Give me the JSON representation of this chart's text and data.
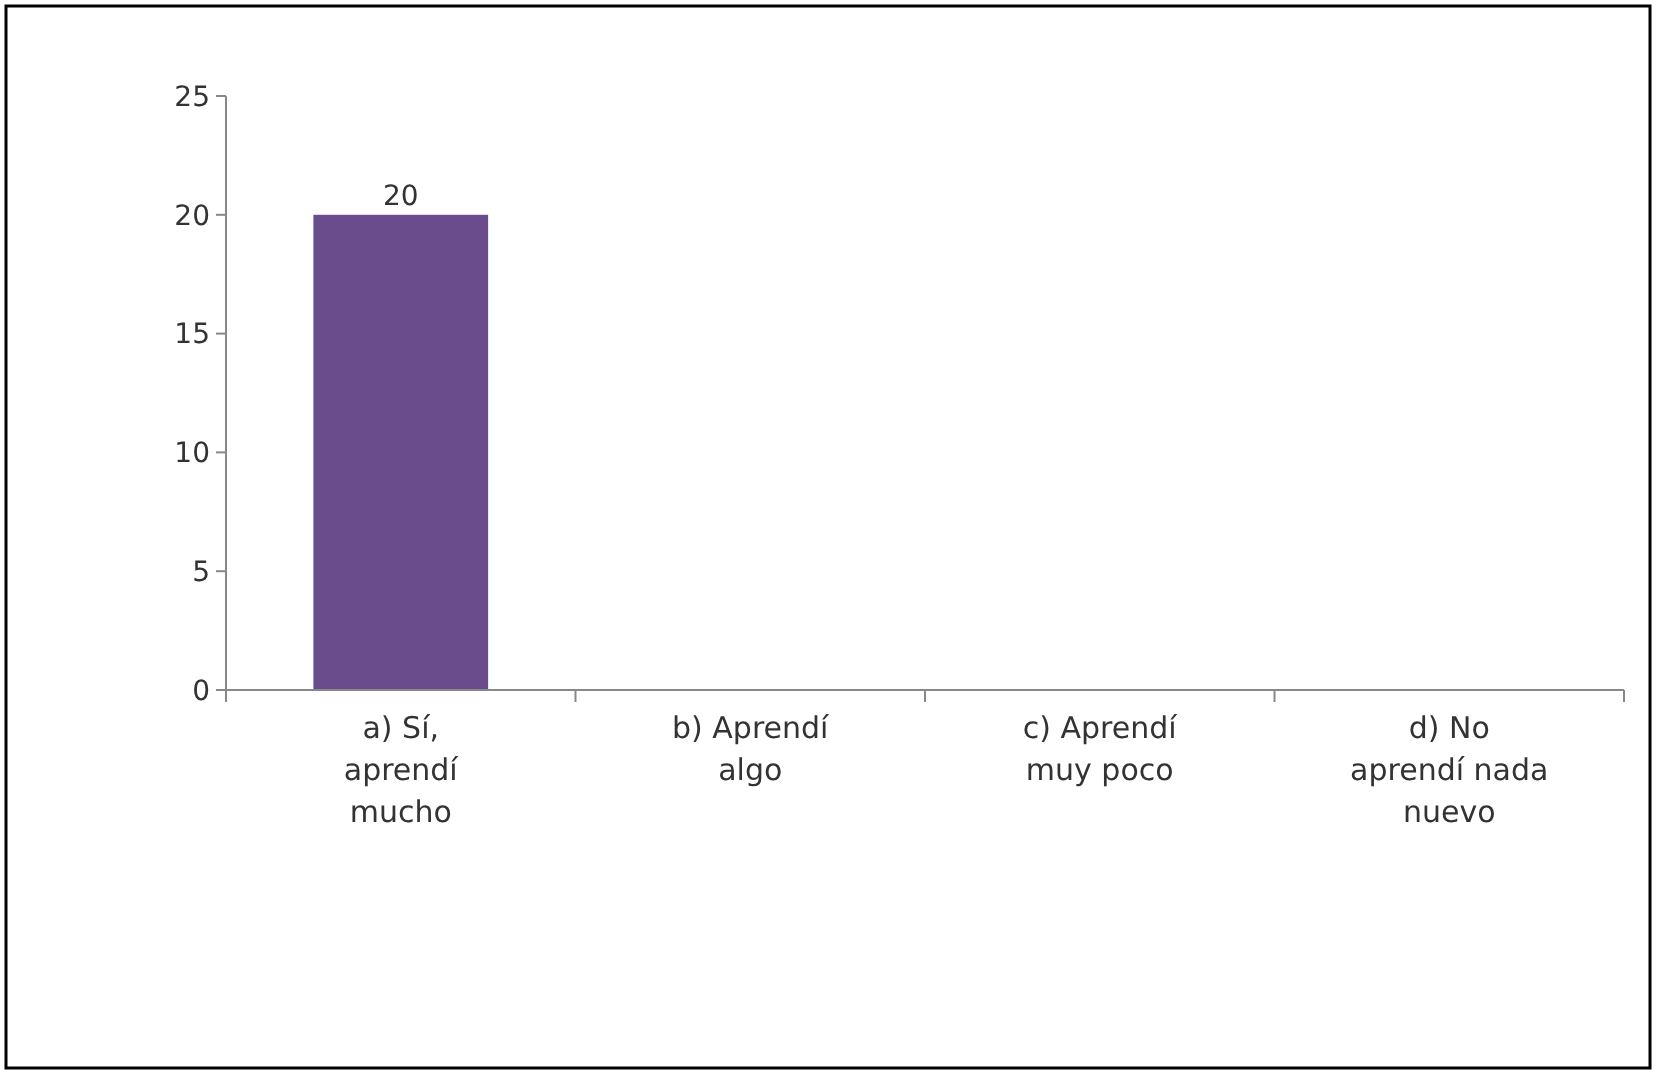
{
  "chart_data": {
    "type": "bar",
    "categories": [
      "a) Sí, aprendí mucho",
      "b) Aprendí algo",
      "c) Aprendí muy poco",
      "d) No aprendí nada nuevo"
    ],
    "values": [
      20,
      0,
      0,
      0
    ],
    "value_labels": [
      "20",
      null,
      null,
      null
    ],
    "color": "#6a4c8c",
    "ylim": [
      0,
      25
    ],
    "yticks": [
      0,
      5,
      10,
      15,
      20,
      25
    ],
    "grid": false
  }
}
